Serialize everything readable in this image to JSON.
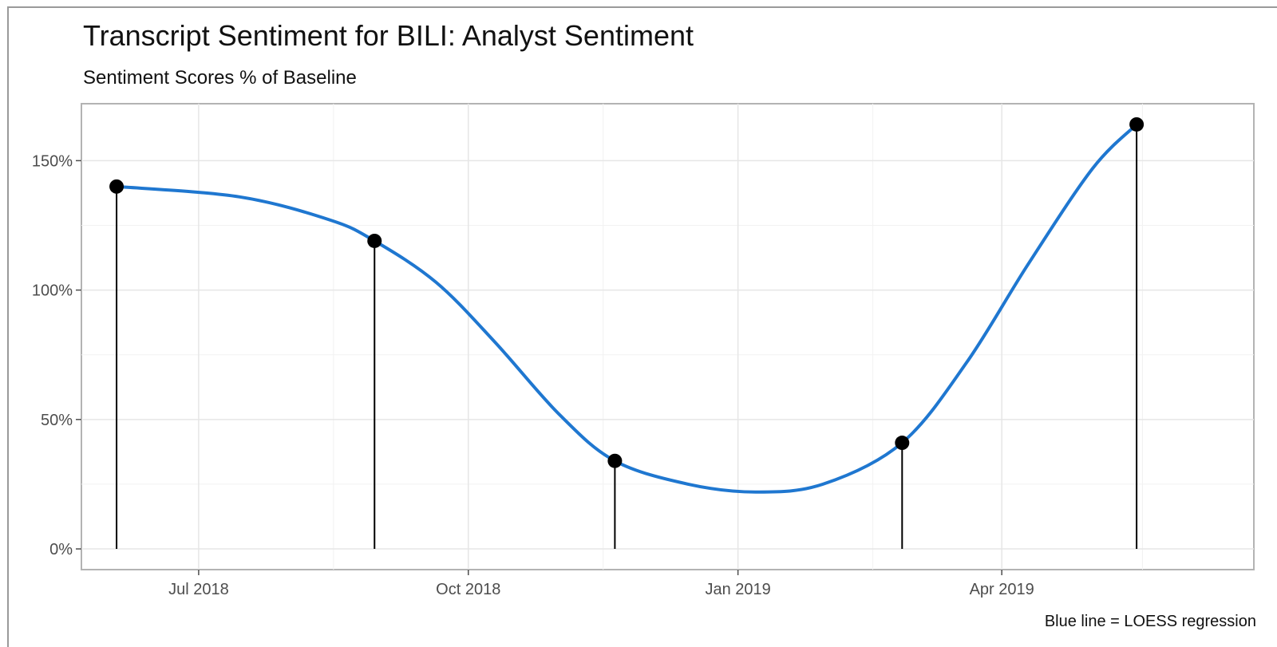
{
  "chart_data": {
    "type": "line",
    "title": "Transcript Sentiment for BILI: Analyst Sentiment",
    "subtitle": "Sentiment Scores % of Baseline",
    "caption": "Blue line = LOESS regression",
    "xlabel": "",
    "ylabel": "",
    "x_ticks": [
      {
        "label": "Jul 2018",
        "date": "2018-07-01"
      },
      {
        "label": "Oct 2018",
        "date": "2018-10-01"
      },
      {
        "label": "Jan 2019",
        "date": "2019-01-01"
      },
      {
        "label": "Apr 2019",
        "date": "2019-04-01"
      }
    ],
    "y_ticks": [
      {
        "label": "0%",
        "value": 0
      },
      {
        "label": "50%",
        "value": 50
      },
      {
        "label": "100%",
        "value": 100
      },
      {
        "label": "150%",
        "value": 150
      }
    ],
    "xlim": [
      "2018-05-22",
      "2019-06-26"
    ],
    "ylim": [
      -8,
      172
    ],
    "grid": true,
    "series": [
      {
        "name": "Analyst Sentiment",
        "style": "stem",
        "points": [
          {
            "date": "2018-06-03",
            "value": 140
          },
          {
            "date": "2018-08-30",
            "value": 119
          },
          {
            "date": "2018-11-20",
            "value": 34
          },
          {
            "date": "2019-02-26",
            "value": 41
          },
          {
            "date": "2019-05-17",
            "value": 164
          }
        ]
      },
      {
        "name": "LOESS regression",
        "style": "smooth-line",
        "color": "#1f77d0",
        "points": [
          {
            "date": "2018-06-03",
            "value": 140
          },
          {
            "date": "2018-07-15",
            "value": 136
          },
          {
            "date": "2018-08-15",
            "value": 127
          },
          {
            "date": "2018-08-30",
            "value": 119
          },
          {
            "date": "2018-09-20",
            "value": 103
          },
          {
            "date": "2018-10-10",
            "value": 80
          },
          {
            "date": "2018-11-01",
            "value": 52
          },
          {
            "date": "2018-11-20",
            "value": 34
          },
          {
            "date": "2018-12-15",
            "value": 25
          },
          {
            "date": "2019-01-07",
            "value": 22
          },
          {
            "date": "2019-01-30",
            "value": 25
          },
          {
            "date": "2019-02-26",
            "value": 41
          },
          {
            "date": "2019-03-20",
            "value": 72
          },
          {
            "date": "2019-04-10",
            "value": 110
          },
          {
            "date": "2019-05-02",
            "value": 147
          },
          {
            "date": "2019-05-17",
            "value": 164
          }
        ]
      }
    ]
  }
}
